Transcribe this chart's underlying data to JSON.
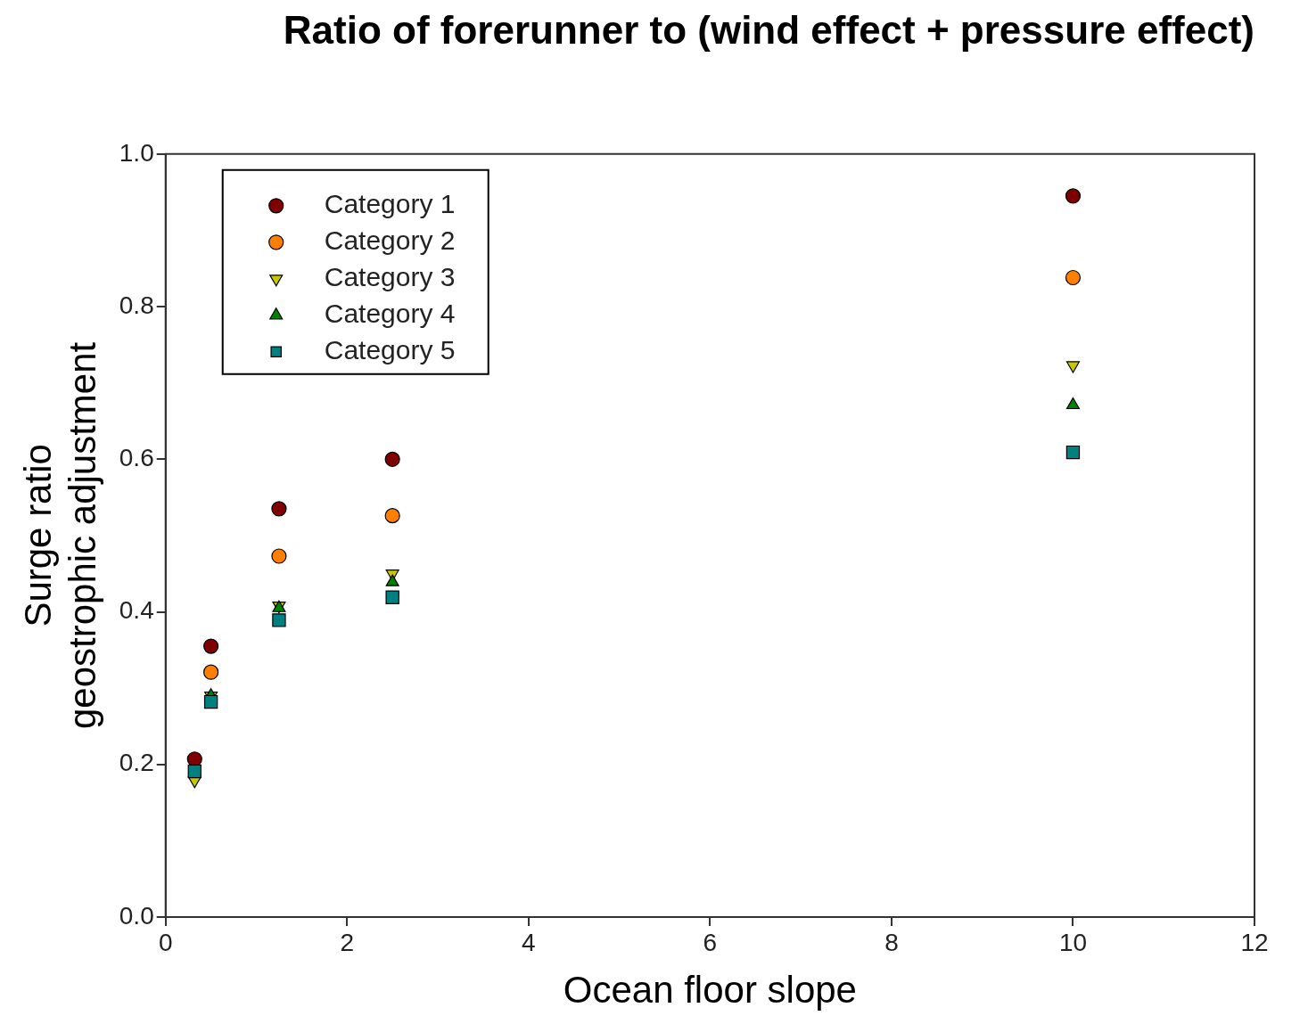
{
  "chart_data": {
    "type": "scatter",
    "title": "Ratio of forerunner to (wind effect + pressure effect)",
    "xlabel": "Ocean floor slope",
    "ylabel": "Surge ratio\ngeostrophic adjustment",
    "x": [
      0.32,
      0.5,
      1.25,
      2.5,
      10
    ],
    "series": [
      {
        "name": "Category 1",
        "color": "#7f0000",
        "marker": "circle",
        "values": [
          0.207,
          0.355,
          0.535,
          0.6,
          0.945
        ]
      },
      {
        "name": "Category 2",
        "color": "#ff8000",
        "marker": "circle",
        "values": [
          null,
          0.321,
          0.473,
          0.526,
          0.838
        ]
      },
      {
        "name": "Category 3",
        "color": "#c8c800",
        "marker": "triangle-down",
        "values": [
          0.179,
          0.29,
          0.408,
          0.45,
          0.723
        ]
      },
      {
        "name": "Category 4",
        "color": "#008000",
        "marker": "triangle",
        "values": [
          null,
          0.29,
          0.405,
          0.439,
          0.671
        ]
      },
      {
        "name": "Category 5",
        "color": "#008080",
        "marker": "square",
        "values": [
          0.191,
          0.282,
          0.389,
          0.419,
          0.609
        ]
      }
    ],
    "xlim": [
      0,
      12
    ],
    "xticks": [
      0,
      2,
      4,
      6,
      8,
      10,
      12
    ],
    "ylim": [
      0,
      1
    ],
    "yticks": [
      {
        "value": 0,
        "label": "0.0"
      },
      {
        "value": 0.2,
        "label": "0.2"
      },
      {
        "value": 0.4,
        "label": "0.4"
      },
      {
        "value": 0.6,
        "label": "0.6"
      },
      {
        "value": 0.8,
        "label": "0.8"
      },
      {
        "value": 1,
        "label": "1.0"
      }
    ],
    "legend": "top left"
  }
}
